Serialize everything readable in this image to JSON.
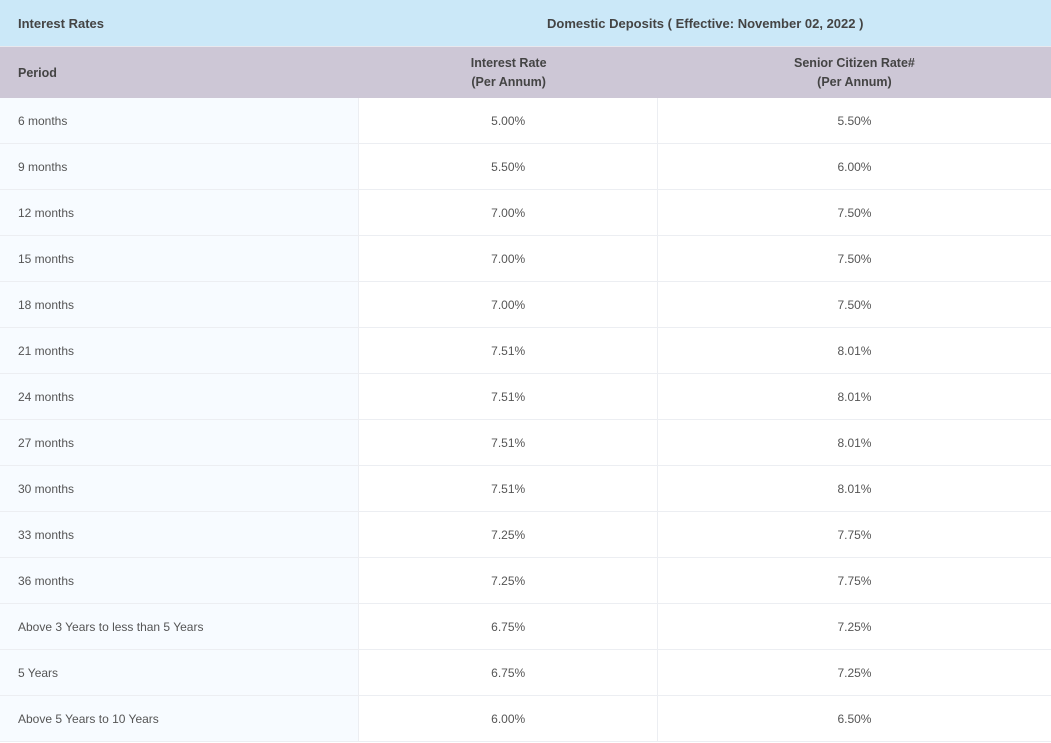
{
  "title_left": "Interest Rates",
  "title_right": "Domestic Deposits ( Effective: November 02, 2022 )",
  "headers": {
    "period": "Period",
    "rate_line1": "Interest Rate",
    "rate_line2": "(Per Annum)",
    "senior_line1": "Senior Citizen Rate#",
    "senior_line2": "(Per Annum)"
  },
  "rows": [
    {
      "period": "6 months",
      "rate": "5.00%",
      "senior": "5.50%"
    },
    {
      "period": "9 months",
      "rate": "5.50%",
      "senior": "6.00%"
    },
    {
      "period": "12 months",
      "rate": "7.00%",
      "senior": "7.50%"
    },
    {
      "period": "15 months",
      "rate": "7.00%",
      "senior": "7.50%"
    },
    {
      "period": "18 months",
      "rate": "7.00%",
      "senior": "7.50%"
    },
    {
      "period": "21 months",
      "rate": "7.51%",
      "senior": "8.01%"
    },
    {
      "period": "24 months",
      "rate": "7.51%",
      "senior": "8.01%"
    },
    {
      "period": "27 months",
      "rate": "7.51%",
      "senior": "8.01%"
    },
    {
      "period": "30 months",
      "rate": "7.51%",
      "senior": "8.01%"
    },
    {
      "period": "33 months",
      "rate": "7.25%",
      "senior": "7.75%"
    },
    {
      "period": "36 months",
      "rate": "7.25%",
      "senior": "7.75%"
    },
    {
      "period": "Above 3 Years to less than 5 Years",
      "rate": "6.75%",
      "senior": "7.25%"
    },
    {
      "period": "5 Years",
      "rate": "6.75%",
      "senior": "7.25%"
    },
    {
      "period": "Above 5 Years to 10 Years",
      "rate": "6.00%",
      "senior": "6.50%"
    }
  ],
  "colors": {
    "title_bg": "#cbe8f8",
    "header_bg": "#cdc7d6",
    "period_cell_bg": "#f7fbff",
    "data_cell_bg": "#ffffff",
    "border": "#eceef2",
    "text": "#555"
  }
}
